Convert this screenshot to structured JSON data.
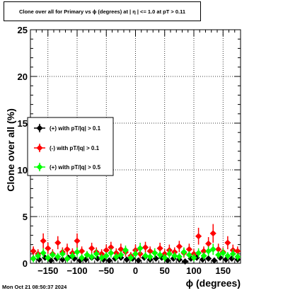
{
  "header": {
    "title": "Clone  over all for Primary vs ϕ (degrees) at |  η | <= 1.0 at pT > 0.11"
  },
  "footer": {
    "timestamp": "Mon Oct 21 08:50:37 2024"
  },
  "chart_data": {
    "type": "scatter",
    "title": "Clone  over all for Primary vs ϕ (degrees) at |  η | <= 1.0 at pT > 0.11",
    "xlabel": "ϕ (degrees)",
    "ylabel": "Clone  over all (%)",
    "xlim": [
      -180,
      180
    ],
    "ylim": [
      0,
      25
    ],
    "x_ticks": [
      -150,
      -100,
      -50,
      0,
      50,
      100,
      150
    ],
    "x_tick_labels": [
      "−150",
      "−100",
      "−50",
      "0",
      "50",
      "100",
      "150"
    ],
    "y_ticks": [
      0,
      5,
      10,
      15,
      20,
      25
    ],
    "y_tick_labels": [
      "0",
      "5",
      "10",
      "15",
      "20",
      "25"
    ],
    "grid": true,
    "legend_position": "left-middle",
    "series": [
      {
        "name": "(+) with pT/|q| > 0.1",
        "color": "#000000",
        "marker": "diamond",
        "x": [
          -175,
          -165,
          -155,
          -145,
          -135,
          -125,
          -115,
          -105,
          -95,
          -85,
          -75,
          -65,
          -55,
          -45,
          -35,
          -25,
          -15,
          -5,
          5,
          15,
          25,
          35,
          45,
          55,
          65,
          75,
          85,
          95,
          105,
          115,
          125,
          135,
          145,
          155,
          165,
          175
        ],
        "y": [
          0.5,
          0.4,
          0.6,
          0.3,
          0.5,
          0.4,
          0.6,
          0.5,
          0.3,
          0.4,
          0.6,
          0.5,
          0.4,
          0.3,
          0.5,
          0.6,
          0.4,
          0.5,
          0.3,
          0.6,
          0.4,
          0.5,
          0.6,
          0.3,
          0.5,
          0.4,
          0.2,
          0.5,
          0.6,
          0.4,
          0.5,
          0.3,
          0.6,
          0.4,
          0.5,
          0.4
        ],
        "yerr": [
          0.3,
          0.3,
          0.3,
          0.2,
          0.3,
          0.3,
          0.3,
          0.3,
          0.2,
          0.3,
          0.3,
          0.3,
          0.3,
          0.2,
          0.3,
          0.3,
          0.3,
          0.3,
          0.2,
          0.3,
          0.3,
          0.3,
          0.3,
          0.2,
          0.3,
          0.3,
          0.2,
          0.3,
          0.3,
          0.3,
          0.3,
          0.2,
          0.3,
          0.3,
          0.3,
          0.3
        ]
      },
      {
        "name": "(-) with pT/|q| > 0.1",
        "color": "#ff0000",
        "marker": "diamond",
        "x": [
          -175,
          -167,
          -158,
          -150,
          -142,
          -133,
          -125,
          -117,
          -108,
          -100,
          -92,
          -83,
          -75,
          -67,
          -58,
          -50,
          -42,
          -33,
          -25,
          -17,
          -8,
          0,
          8,
          17,
          25,
          33,
          42,
          50,
          58,
          67,
          75,
          83,
          92,
          100,
          108,
          117,
          125,
          133,
          142,
          150,
          158,
          167,
          175
        ],
        "y": [
          1.3,
          1.0,
          2.4,
          1.6,
          1.0,
          2.2,
          1.2,
          1.5,
          1.1,
          2.4,
          1.3,
          0.9,
          1.6,
          1.2,
          1.0,
          1.4,
          1.7,
          1.1,
          1.5,
          1.2,
          0.8,
          1.4,
          1.0,
          1.7,
          1.3,
          1.1,
          1.6,
          1.0,
          1.4,
          1.2,
          1.8,
          1.1,
          1.5,
          1.0,
          2.9,
          1.3,
          2.1,
          3.2,
          1.5,
          1.2,
          2.2,
          1.4,
          1.3
        ],
        "yerr": [
          0.5,
          0.5,
          0.8,
          0.6,
          0.5,
          0.7,
          0.5,
          0.6,
          0.5,
          0.8,
          0.5,
          0.4,
          0.6,
          0.5,
          0.5,
          0.6,
          0.6,
          0.5,
          0.6,
          0.5,
          0.4,
          0.6,
          0.5,
          0.6,
          0.5,
          0.5,
          0.6,
          0.5,
          0.6,
          0.5,
          0.6,
          0.5,
          0.6,
          0.5,
          0.9,
          0.5,
          0.7,
          1.0,
          0.6,
          0.5,
          0.7,
          0.6,
          0.5
        ]
      },
      {
        "name": "(+) with pT/|q| > 0.5",
        "color": "#00ff00",
        "marker": "diamond",
        "x": [
          -175,
          -167,
          -158,
          -150,
          -142,
          -133,
          -125,
          -117,
          -108,
          -100,
          -92,
          -83,
          -75,
          -67,
          -58,
          -50,
          -42,
          -33,
          -25,
          -17,
          -8,
          0,
          8,
          17,
          25,
          33,
          42,
          50,
          58,
          67,
          75,
          83,
          92,
          100,
          108,
          117,
          125,
          133,
          142,
          150,
          158,
          167,
          175
        ],
        "y": [
          0.5,
          0.8,
          1.1,
          0.6,
          0.9,
          0.7,
          1.0,
          0.5,
          0.8,
          1.2,
          0.6,
          0.9,
          0.7,
          1.0,
          0.6,
          0.8,
          1.1,
          0.7,
          0.9,
          1.4,
          0.6,
          1.0,
          1.6,
          0.8,
          0.7,
          1.1,
          0.9,
          0.6,
          1.0,
          0.8,
          0.7,
          1.2,
          0.9,
          0.6,
          1.1,
          0.8,
          1.3,
          1.5,
          0.9,
          1.1,
          0.8,
          1.0,
          0.7
        ],
        "yerr": [
          0.4,
          0.4,
          0.5,
          0.4,
          0.4,
          0.4,
          0.5,
          0.4,
          0.4,
          0.5,
          0.4,
          0.4,
          0.4,
          0.5,
          0.4,
          0.4,
          0.5,
          0.4,
          0.4,
          0.5,
          0.4,
          0.5,
          0.6,
          0.4,
          0.4,
          0.5,
          0.4,
          0.4,
          0.5,
          0.4,
          0.4,
          0.5,
          0.4,
          0.4,
          0.5,
          0.4,
          0.5,
          0.6,
          0.4,
          0.5,
          0.4,
          0.5,
          0.4
        ]
      }
    ]
  }
}
